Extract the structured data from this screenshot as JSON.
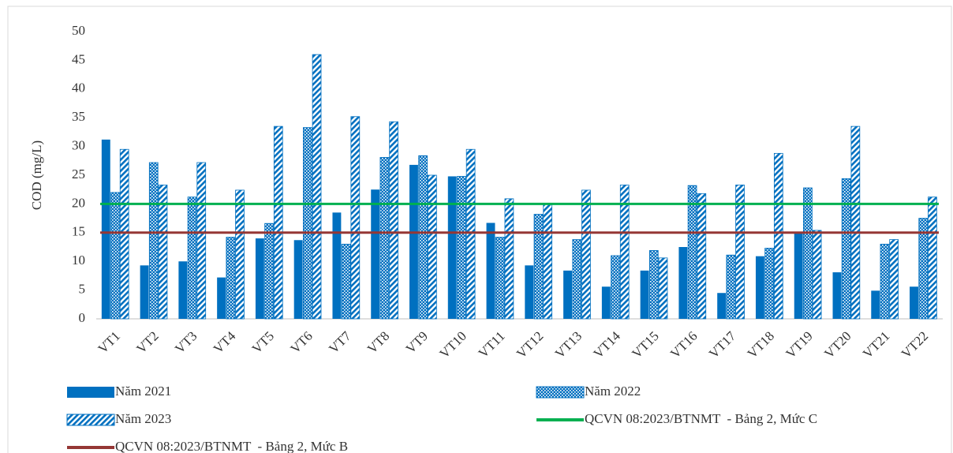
{
  "chart_data": {
    "type": "bar",
    "y_label": "COD (mg/L)",
    "categories": [
      "VT1",
      "VT2",
      "VT3",
      "VT4",
      "VT5",
      "VT6",
      "VT7",
      "VT8",
      "VT9",
      "VT10",
      "VT11",
      "VT12",
      "VT13",
      "VT14",
      "VT15",
      "VT16",
      "VT17",
      "VT18",
      "VT19",
      "VT20",
      "VT21",
      "VT22"
    ],
    "series": [
      {
        "name": "Năm 2021",
        "color": "#0070c0",
        "pattern": "solid",
        "values": [
          31.2,
          9.3,
          10,
          7.2,
          14,
          13.7,
          18.5,
          22.5,
          26.8,
          24.8,
          16.7,
          9.3,
          8.4,
          5.6,
          8.4,
          12.5,
          4.5,
          10.9,
          15,
          8.1,
          4.9,
          5.6
        ]
      },
      {
        "name": "Năm 2022",
        "color": "#0070c0",
        "pattern": "crosshatch",
        "values": [
          22,
          27.2,
          21.2,
          14.2,
          16.6,
          33.3,
          13,
          28.1,
          28.4,
          24.8,
          14.2,
          18.2,
          13.8,
          11,
          11.9,
          23.2,
          11.1,
          12.3,
          22.8,
          24.4,
          13,
          17.5
        ]
      },
      {
        "name": "Năm 2023",
        "color": "#0070c0",
        "pattern": "diagonal",
        "values": [
          29.5,
          23.3,
          27.2,
          22.4,
          33.5,
          46,
          35.2,
          34.3,
          25,
          29.5,
          20.9,
          20,
          22.4,
          23.3,
          10.6,
          21.8,
          23.3,
          28.8,
          15.4,
          33.5,
          13.8,
          21.2
        ]
      }
    ],
    "reference_lines": [
      {
        "name": "QCVN 08:2023/BTNMT  - Bảng 2, Mức C",
        "color": "#00b050",
        "value": 20
      },
      {
        "name": "QCVN 08:2023/BTNMT  - Bảng 2, Mức B",
        "color": "#953735",
        "value": 15
      }
    ],
    "ylim": [
      0,
      50
    ],
    "yticks": [
      0,
      5,
      10,
      15,
      20,
      25,
      30,
      35,
      40,
      45,
      50
    ],
    "grid": false
  }
}
